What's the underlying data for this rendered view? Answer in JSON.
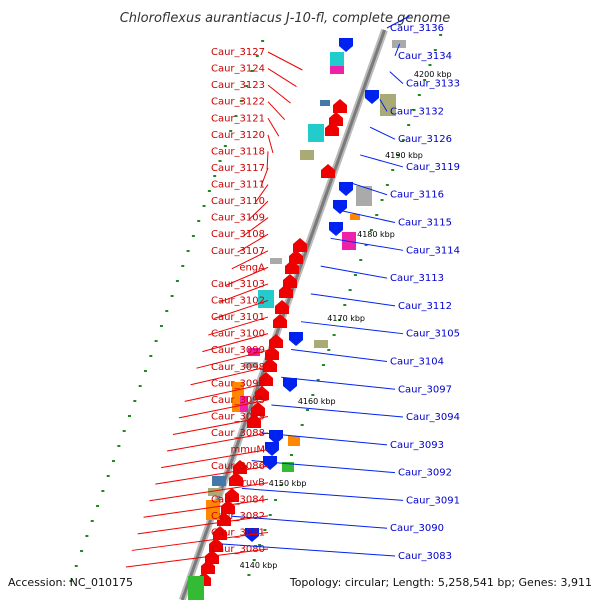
{
  "title": "Chloroflexus aurantiacus J-10-fl, complete genome",
  "footer": {
    "accession": "Accession: NC_010175",
    "summary": "Topology: circular; Length: 5,258,541 bp; Genes: 3,911"
  },
  "ticks": [
    "4200 kbp",
    "4190 kbp",
    "4180 kbp",
    "4170 kbp",
    "4160 kbp",
    "4150 kbp",
    "4140 kbp"
  ],
  "left_genes": [
    "Caur_3127",
    "Caur_3124",
    "Caur_3123",
    "Caur_3122",
    "Caur_3121",
    "Caur_3120",
    "Caur_3118",
    "Caur_3117",
    "Caur_3111",
    "Caur_3110",
    "Caur_3109",
    "Caur_3108",
    "Caur_3107",
    "engA",
    "Caur_3103",
    "Caur_3102",
    "Caur_3101",
    "Caur_3100",
    "Caur_3099",
    "Caur_3098",
    "Caur_3096",
    "Caur_3095",
    "Caur_3089",
    "Caur_3088",
    "mmuM",
    "Caur_3086",
    "ruvB",
    "Caur_3084",
    "Caur_3082",
    "Caur_3081",
    "Caur_3080"
  ],
  "right_genes": [
    "Caur_3136",
    "Caur_3134",
    "Caur_3133",
    "Caur_3132",
    "Caur_3126",
    "Caur_3119",
    "Caur_3116",
    "Caur_3115",
    "Caur_3114",
    "Caur_3113",
    "Caur_3112",
    "Caur_3105",
    "Caur_3104",
    "Caur_3097",
    "Caur_3094",
    "Caur_3093",
    "Caur_3092",
    "Caur_3091",
    "Caur_3090",
    "Caur_3083"
  ],
  "colors": {
    "forward_gene": "#ee0000",
    "reverse_gene": "#0022ee",
    "left_label": "#cc0000",
    "right_label": "#0000cc",
    "backbone": "#999999",
    "tick_mark": "#228822",
    "feature_cyan": "#22cccc",
    "feature_magenta": "#ee22aa",
    "feature_olive": "#aaaa77",
    "feature_gray": "#aaaaaa",
    "feature_orange": "#ff8800",
    "feature_green": "#33bb33",
    "feature_steelblue": "#4477aa"
  }
}
